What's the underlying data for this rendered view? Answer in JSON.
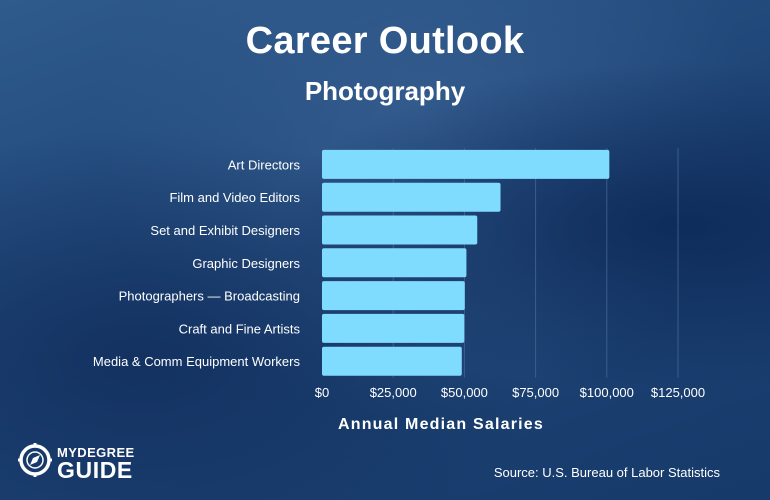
{
  "title": "Career Outlook",
  "subtitle": "Photography",
  "logo": {
    "top": "MYDEGREE",
    "bottom": "GUIDE",
    "icon": "compass-icon"
  },
  "source": "Source: U.S. Bureau of Labor Statistics",
  "colors": {
    "bar": "#80dcff",
    "background": "#1f4677",
    "gridline": "#4a6e99",
    "text": "#ffffff"
  },
  "chart_data": {
    "type": "bar",
    "orientation": "horizontal",
    "categories": [
      "Art Directors",
      "Film and Video Editors",
      "Set and Exhibit Designers",
      "Graphic Designers",
      "Photographers — Broadcasting",
      "Craft and Fine Artists",
      "Media & Comm Equipment Workers"
    ],
    "values": [
      100890,
      62680,
      54510,
      50710,
      50130,
      49960,
      49080
    ],
    "xlabel": "Annual Median Salaries",
    "ylabel": "",
    "xlim": [
      0,
      125000
    ],
    "ticks": [
      0,
      25000,
      50000,
      75000,
      100000,
      125000
    ],
    "tick_labels": [
      "$0",
      "$25,000",
      "$50,000",
      "$75,000",
      "$100,000",
      "$125,000"
    ],
    "grid": true
  }
}
